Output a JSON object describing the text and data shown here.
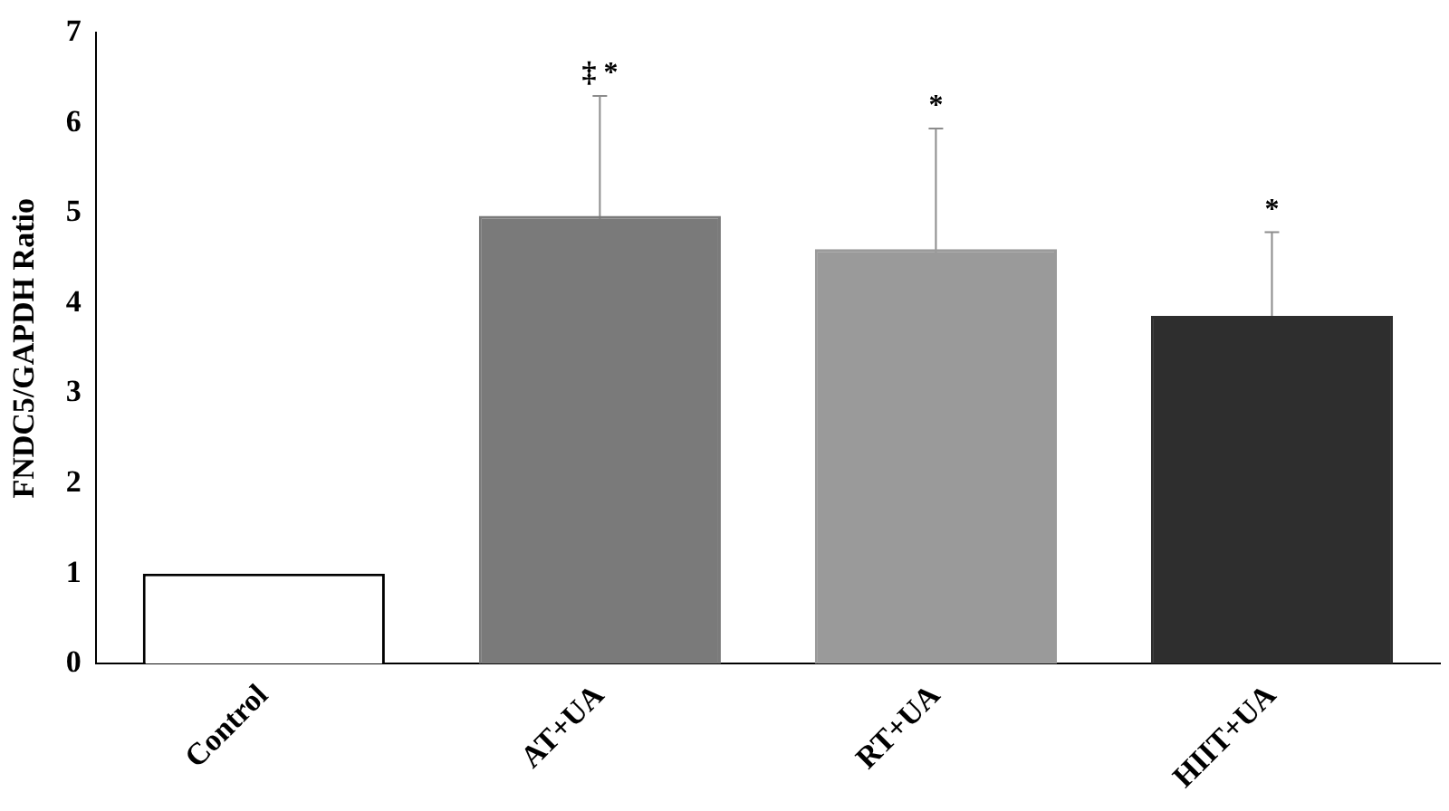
{
  "chart_data": {
    "type": "bar",
    "ylabel": "FNDC5/GAPDH Ratio",
    "categories": [
      "Control",
      "AT+UA",
      "RT+UA",
      "HIIT+UA"
    ],
    "values": [
      1.0,
      4.97,
      4.6,
      3.86
    ],
    "errors": [
      null,
      1.33,
      1.34,
      0.93
    ],
    "colors": [
      "#ffffff",
      "#7a7a7a",
      "#9a9a9a",
      "#2e2e2e"
    ],
    "ylim": [
      0,
      7
    ],
    "yticks": [
      0,
      1,
      2,
      3,
      4,
      5,
      6,
      7
    ],
    "grid": false,
    "legend": false,
    "annotations": [
      {
        "text": "‡ *",
        "x": "AT+UA",
        "y": 6.3
      },
      {
        "text": "*",
        "x": "RT+UA",
        "y": 5.94
      },
      {
        "text": "*",
        "x": "HIIT+UA",
        "y": 4.79
      }
    ]
  }
}
